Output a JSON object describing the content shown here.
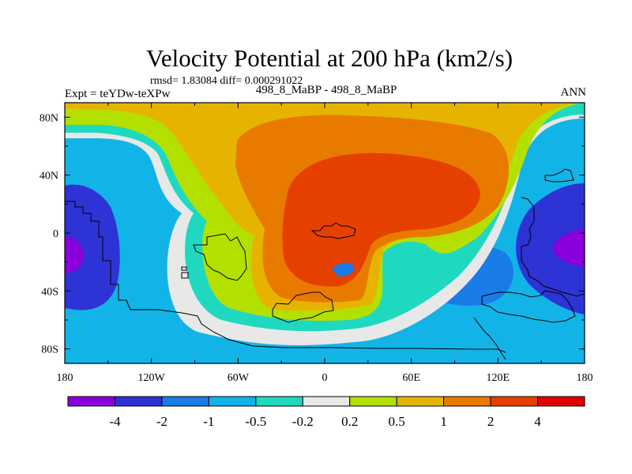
{
  "chart_data": {
    "type": "contour-map",
    "title": "Velocity Potential at 200 hPa (km2/s)",
    "stats": "rmsd= 1.83084 diff= 0.000291022",
    "left_label": "Expt = teYDw-teXPw",
    "center_label": "498_8_MaBP - 498_8_MaBP",
    "right_label": "ANN",
    "x_ticks": [
      "180",
      "120W",
      "60W",
      "0",
      "60E",
      "120E",
      "180"
    ],
    "x_tick_values": [
      -180,
      -120,
      -60,
      0,
      60,
      120,
      180
    ],
    "y_ticks": [
      "80N",
      "40N",
      "0",
      "40S",
      "80S"
    ],
    "y_tick_values": [
      80,
      40,
      0,
      -40,
      -80
    ],
    "xlim": [
      -180,
      180
    ],
    "ylim": [
      -90,
      90
    ],
    "colorbar": {
      "levels": [
        "-4",
        "-2",
        "-1",
        "-0.5",
        "-0.2",
        "0.2",
        "0.5",
        "1",
        "2",
        "4"
      ],
      "colors": [
        "#8a00dc",
        "#2e33d6",
        "#1a7ce6",
        "#12b4e8",
        "#1ed9c0",
        "#e8e8e8",
        "#b4e000",
        "#e6b400",
        "#e87a00",
        "#e64000",
        "#e00000"
      ]
    },
    "fields": {
      "bg": "#12b4e8",
      "east_box": "#1a7ce6",
      "white_band": "#e8e8e8",
      "teal_band": "#1ed9c0",
      "east_outer": "#2e33d6",
      "east_core": "#8a00dc",
      "yellow_green": "#b4e000",
      "gold": "#e6b400",
      "orange": "#e87a00",
      "red_orange": "#e64000",
      "west_outer": "#2e33d6",
      "west_core": "#8a00dc",
      "mid_box": "#1a7ce6"
    }
  }
}
